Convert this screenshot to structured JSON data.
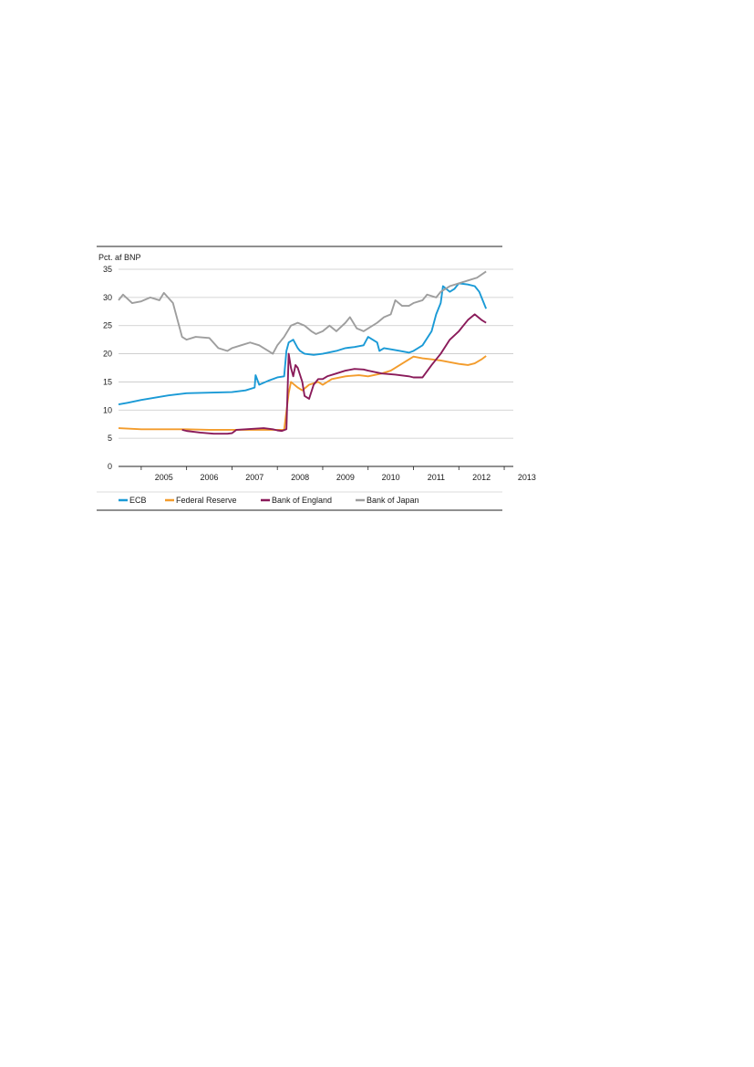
{
  "chart_data": {
    "type": "line",
    "ylabel": "Pct. af BNP",
    "ylim": [
      0,
      35
    ],
    "yticks": [
      0,
      5,
      10,
      15,
      20,
      25,
      30,
      35
    ],
    "xlim": [
      2004.5,
      2013.2
    ],
    "xtick_labels": [
      "2005",
      "2006",
      "2007",
      "2008",
      "2009",
      "2010",
      "2011",
      "2012",
      "2013"
    ],
    "grid": "horizontal",
    "legend_position": "bottom",
    "series": [
      {
        "name": "ECB",
        "color": "#1a9ad6",
        "x": [
          2004.5,
          2004.7,
          2005.0,
          2005.3,
          2005.6,
          2006.0,
          2006.5,
          2007.0,
          2007.3,
          2007.5,
          2007.52,
          2007.6,
          2007.8,
          2008.0,
          2008.15,
          2008.2,
          2008.25,
          2008.35,
          2008.45,
          2008.5,
          2008.6,
          2008.8,
          2009.0,
          2009.3,
          2009.5,
          2009.7,
          2009.9,
          2010.0,
          2010.2,
          2010.25,
          2010.35,
          2010.5,
          2010.7,
          2010.9,
          2011.0,
          2011.2,
          2011.4,
          2011.5,
          2011.6,
          2011.65,
          2011.8,
          2011.9,
          2012.0,
          2012.2,
          2012.35,
          2012.45,
          2012.55,
          2012.6
        ],
        "y": [
          11.0,
          11.3,
          11.8,
          12.2,
          12.6,
          13.0,
          13.1,
          13.2,
          13.5,
          14.0,
          16.2,
          14.5,
          15.2,
          15.8,
          16.0,
          20.5,
          22.0,
          22.5,
          21.0,
          20.5,
          20.0,
          19.8,
          20.0,
          20.5,
          21.0,
          21.2,
          21.5,
          23.0,
          22.0,
          20.5,
          21.0,
          20.8,
          20.5,
          20.2,
          20.5,
          21.5,
          24.0,
          27.0,
          29.0,
          32.0,
          31.0,
          31.5,
          32.5,
          32.3,
          32.0,
          31.0,
          29.0,
          28.0
        ]
      },
      {
        "name": "Federal Reserve",
        "color": "#f39c2c",
        "x": [
          2004.5,
          2005.0,
          2005.5,
          2006.0,
          2006.5,
          2007.0,
          2007.5,
          2008.0,
          2008.15,
          2008.25,
          2008.3,
          2008.45,
          2008.55,
          2008.7,
          2008.9,
          2009.0,
          2009.2,
          2009.5,
          2009.8,
          2010.0,
          2010.3,
          2010.5,
          2010.8,
          2011.0,
          2011.2,
          2011.4,
          2011.6,
          2011.8,
          2012.0,
          2012.2,
          2012.35,
          2012.5,
          2012.6
        ],
        "y": [
          6.8,
          6.6,
          6.6,
          6.6,
          6.5,
          6.5,
          6.5,
          6.5,
          6.5,
          13.0,
          15.0,
          14.0,
          13.5,
          14.5,
          15.0,
          14.5,
          15.5,
          16.0,
          16.2,
          16.0,
          16.5,
          17.0,
          18.5,
          19.5,
          19.2,
          19.0,
          18.8,
          18.5,
          18.2,
          18.0,
          18.3,
          19.0,
          19.6
        ]
      },
      {
        "name": "Bank of England",
        "color": "#8a1b5a",
        "x": [
          2005.9,
          2006.0,
          2006.3,
          2006.6,
          2006.9,
          2007.0,
          2007.1,
          2007.3,
          2007.5,
          2007.7,
          2007.9,
          2008.0,
          2008.1,
          2008.2,
          2008.25,
          2008.3,
          2008.35,
          2008.4,
          2008.45,
          2008.55,
          2008.6,
          2008.7,
          2008.8,
          2008.9,
          2009.0,
          2009.1,
          2009.3,
          2009.5,
          2009.7,
          2009.9,
          2010.0,
          2010.3,
          2010.6,
          2010.9,
          2011.0,
          2011.2,
          2011.4,
          2011.6,
          2011.8,
          2012.0,
          2012.2,
          2012.35,
          2012.5,
          2012.6
        ],
        "y": [
          6.5,
          6.3,
          6.0,
          5.8,
          5.8,
          5.9,
          6.5,
          6.6,
          6.7,
          6.8,
          6.6,
          6.4,
          6.3,
          6.6,
          20.0,
          17.5,
          16.0,
          18.0,
          17.5,
          15.0,
          12.5,
          12.0,
          14.5,
          15.5,
          15.5,
          16.0,
          16.5,
          17.0,
          17.3,
          17.2,
          17.0,
          16.5,
          16.3,
          16.0,
          15.8,
          15.8,
          18.0,
          20.0,
          22.5,
          24.0,
          26.0,
          27.0,
          26.0,
          25.5
        ]
      },
      {
        "name": "Bank of Japan",
        "color": "#9e9e9e",
        "x": [
          2004.5,
          2004.6,
          2004.8,
          2005.0,
          2005.2,
          2005.4,
          2005.5,
          2005.7,
          2005.9,
          2006.0,
          2006.2,
          2006.5,
          2006.7,
          2006.9,
          2007.0,
          2007.2,
          2007.4,
          2007.6,
          2007.8,
          2007.9,
          2008.0,
          2008.15,
          2008.3,
          2008.45,
          2008.6,
          2008.75,
          2008.85,
          2009.0,
          2009.15,
          2009.3,
          2009.5,
          2009.6,
          2009.75,
          2009.9,
          2010.0,
          2010.2,
          2010.35,
          2010.5,
          2010.6,
          2010.75,
          2010.9,
          2011.0,
          2011.2,
          2011.3,
          2011.5,
          2011.6,
          2011.8,
          2012.0,
          2012.2,
          2012.4,
          2012.6
        ],
        "y": [
          29.5,
          30.5,
          29.0,
          29.3,
          30.0,
          29.5,
          30.8,
          29.0,
          23.0,
          22.5,
          23.0,
          22.8,
          21.0,
          20.5,
          21.0,
          21.5,
          22.0,
          21.5,
          20.5,
          20.0,
          21.5,
          23.0,
          25.0,
          25.5,
          25.0,
          24.0,
          23.5,
          24.0,
          25.0,
          24.0,
          25.5,
          26.5,
          24.5,
          24.0,
          24.5,
          25.5,
          26.5,
          27.0,
          29.5,
          28.5,
          28.5,
          29.0,
          29.5,
          30.5,
          30.0,
          31.0,
          32.0,
          32.5,
          33.0,
          33.5,
          34.6
        ]
      }
    ]
  }
}
